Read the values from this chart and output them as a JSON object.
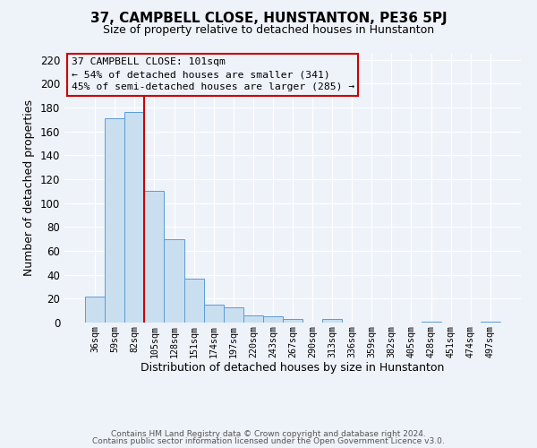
{
  "title": "37, CAMPBELL CLOSE, HUNSTANTON, PE36 5PJ",
  "subtitle": "Size of property relative to detached houses in Hunstanton",
  "xlabel": "Distribution of detached houses by size in Hunstanton",
  "ylabel": "Number of detached properties",
  "bar_labels": [
    "36sqm",
    "59sqm",
    "82sqm",
    "105sqm",
    "128sqm",
    "151sqm",
    "174sqm",
    "197sqm",
    "220sqm",
    "243sqm",
    "267sqm",
    "290sqm",
    "313sqm",
    "336sqm",
    "359sqm",
    "382sqm",
    "405sqm",
    "428sqm",
    "451sqm",
    "474sqm",
    "497sqm"
  ],
  "bar_values": [
    22,
    171,
    176,
    110,
    70,
    37,
    15,
    13,
    6,
    5,
    3,
    0,
    3,
    0,
    0,
    0,
    0,
    1,
    0,
    0,
    1
  ],
  "bar_color": "#c9dff0",
  "bar_edgecolor": "#5b9bd5",
  "vline_x": 2.5,
  "vline_color": "#cc0000",
  "annotation_title": "37 CAMPBELL CLOSE: 101sqm",
  "annotation_line1": "← 54% of detached houses are smaller (341)",
  "annotation_line2": "45% of semi-detached houses are larger (285) →",
  "annotation_box_edgecolor": "#cc0000",
  "ylim": [
    0,
    225
  ],
  "yticks": [
    0,
    20,
    40,
    60,
    80,
    100,
    120,
    140,
    160,
    180,
    200,
    220
  ],
  "footer1": "Contains HM Land Registry data © Crown copyright and database right 2024.",
  "footer2": "Contains public sector information licensed under the Open Government Licence v3.0.",
  "bg_color": "#eef2f9",
  "grid_color": "#ffffff",
  "figsize": [
    6.0,
    5.0
  ],
  "dpi": 100
}
